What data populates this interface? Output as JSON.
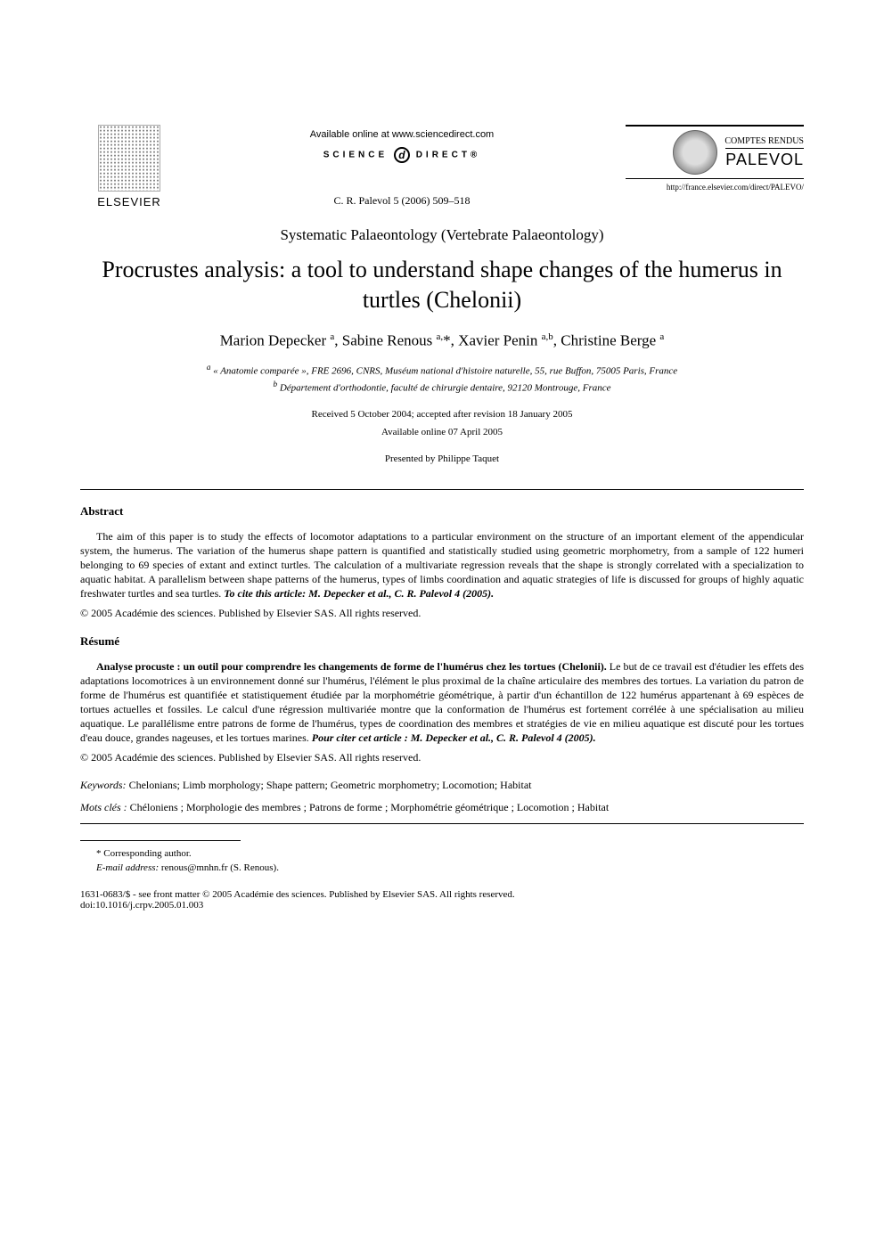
{
  "header": {
    "elsevier_label": "ELSEVIER",
    "available_online": "Available online at www.sciencedirect.com",
    "sciencedirect_left": "SCIENCE",
    "sciencedirect_right": "DIRECT®",
    "journal_ref": "C. R. Palevol 5 (2006) 509–518",
    "comptes_rendus": "COMPTES RENDUS",
    "palevol": "PALEVOL",
    "url": "http://france.elsevier.com/direct/PALEVO/"
  },
  "category": "Systematic Palaeontology (Vertebrate Palaeontology)",
  "title": "Procrustes analysis: a tool to understand shape changes of the humerus in turtles (Chelonii)",
  "authors_html": "Marion Depecker <sup>a</sup>, Sabine Renous <sup>a,</sup>*, Xavier Penin <sup>a,b</sup>, Christine Berge <sup>a</sup>",
  "affiliation_a": "« Anatomie comparée », FRE 2696, CNRS, Muséum national d'histoire naturelle, 55, rue Buffon, 75005 Paris, France",
  "affiliation_b": "Département d'orthodontie, faculté de chirurgie dentaire, 92120 Montrouge, France",
  "received": "Received 5 October 2004; accepted after revision 18 January 2005",
  "available_date": "Available online 07 April 2005",
  "presented": "Presented by Philippe Taquet",
  "abstract_heading": "Abstract",
  "abstract_body": "The aim of this paper is to study the effects of locomotor adaptations to a particular environment on the structure of an important element of the appendicular system, the humerus. The variation of the humerus shape pattern is quantified and statistically studied using geometric morphometry, from a sample of 122 humeri belonging to 69 species of extant and extinct turtles. The calculation of a multivariate regression reveals that the shape is strongly correlated with a specialization to aquatic habitat. A parallelism between shape patterns of the humerus, types of limbs coordination and aquatic strategies of life is discussed for groups of highly aquatic freshwater turtles and sea turtles. ",
  "abstract_cite": "To cite this article: M. Depecker et al., C. R. Palevol 4 (2005).",
  "copyright_en": "© 2005 Académie des sciences. Published by Elsevier SAS. All rights reserved.",
  "resume_heading": "Résumé",
  "resume_title": "Analyse procuste : un outil pour comprendre les changements de forme de l'humérus chez les tortues (Chelonii).",
  "resume_body": " Le but de ce travail est d'étudier les effets des adaptations locomotrices à un environnement donné sur l'humérus, l'élément le plus proximal de la chaîne articulaire des membres des tortues. La variation du patron de forme de l'humérus est quantifiée et statistiquement étudiée par la morphométrie géométrique, à partir d'un échantillon de 122 humérus appartenant à 69 espèces de tortues actuelles et fossiles. Le calcul d'une régression multivariée montre que la conformation de l'humérus est fortement corrélée à une spécialisation au milieu aquatique. Le parallélisme entre patrons de forme de l'humérus, types de coordination des membres et stratégies de vie en milieu aquatique est discuté pour les tortues d'eau douce, grandes nageuses, et les tortues marines. ",
  "resume_cite": "Pour citer cet article : M. Depecker et al., C. R. Palevol 4 (2005).",
  "copyright_fr": "© 2005 Académie des sciences. Published by Elsevier SAS. All rights reserved.",
  "keywords_label": "Keywords:",
  "keywords": "Chelonians; Limb morphology; Shape pattern; Geometric morphometry; Locomotion; Habitat",
  "motscles_label": "Mots clés :",
  "motscles": "Chéloniens ; Morphologie des membres ; Patrons de forme ; Morphométrie géométrique ; Locomotion ; Habitat",
  "corresponding": "* Corresponding author.",
  "email_label": "E-mail address:",
  "email": "renous@mnhn.fr (S. Renous).",
  "front_matter": "1631-0683/$ - see front matter © 2005 Académie des sciences. Published by Elsevier SAS. All rights reserved.",
  "doi": "doi:10.1016/j.crpv.2005.01.003"
}
